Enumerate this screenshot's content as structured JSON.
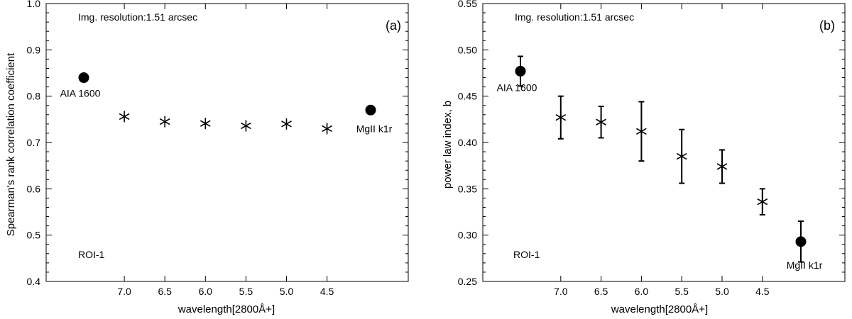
{
  "chart_data": [
    {
      "id": "a",
      "type": "scatter",
      "panel_label": "(a)",
      "ylabel": "Spearman's rank correlation coefficient",
      "xlabel": "wavelength[2800Å+]",
      "ylim": [
        0.4,
        1.0
      ],
      "yticks": [
        "0.4",
        "0.5",
        "0.6",
        "0.7",
        "0.8",
        "0.9",
        "1.0"
      ],
      "xticks": [
        "7.0",
        "6.5",
        "6.0",
        "5.5",
        "5.0",
        "4.5"
      ],
      "annotations": {
        "resolution": "Img. resolution:1.51 arcsec",
        "roi": "ROI-1"
      },
      "points": [
        {
          "x": "AIA 1600",
          "y": 0.84,
          "marker": "circle",
          "label": "AIA 1600"
        },
        {
          "x": 7.0,
          "y": 0.756,
          "marker": "asterisk"
        },
        {
          "x": 6.5,
          "y": 0.745,
          "marker": "asterisk"
        },
        {
          "x": 6.0,
          "y": 0.741,
          "marker": "asterisk"
        },
        {
          "x": 5.5,
          "y": 0.736,
          "marker": "asterisk"
        },
        {
          "x": 5.0,
          "y": 0.74,
          "marker": "asterisk"
        },
        {
          "x": 4.5,
          "y": 0.73,
          "marker": "asterisk"
        },
        {
          "x": "MgII k1r",
          "y": 0.77,
          "marker": "circle",
          "label": "MgII k1r"
        }
      ]
    },
    {
      "id": "b",
      "type": "scatter",
      "panel_label": "(b)",
      "ylabel": "power law index, b",
      "xlabel": "wavelength[2800Å+]",
      "ylim": [
        0.25,
        0.55
      ],
      "yticks": [
        "0.25",
        "0.30",
        "0.35",
        "0.40",
        "0.45",
        "0.50",
        "0.55"
      ],
      "xticks": [
        "7.0",
        "6.5",
        "6.0",
        "5.5",
        "5.0",
        "4.5"
      ],
      "annotations": {
        "resolution": "Img. resolution:1.51 arcsec",
        "roi": "ROI-1"
      },
      "points": [
        {
          "x": "AIA 1600",
          "y": 0.477,
          "err": 0.016,
          "marker": "circle",
          "label": "AIA 1600"
        },
        {
          "x": 7.0,
          "y": 0.427,
          "err": 0.023,
          "marker": "asterisk"
        },
        {
          "x": 6.5,
          "y": 0.422,
          "err": 0.017,
          "marker": "asterisk"
        },
        {
          "x": 6.0,
          "y": 0.412,
          "err": 0.032,
          "marker": "asterisk"
        },
        {
          "x": 5.5,
          "y": 0.385,
          "err": 0.029,
          "marker": "asterisk"
        },
        {
          "x": 5.0,
          "y": 0.374,
          "err": 0.018,
          "marker": "asterisk"
        },
        {
          "x": 4.5,
          "y": 0.336,
          "err": 0.014,
          "marker": "asterisk"
        },
        {
          "x": "MgII k1r",
          "y": 0.293,
          "err": 0.022,
          "marker": "circle",
          "label": "MgII k1r"
        }
      ]
    }
  ]
}
